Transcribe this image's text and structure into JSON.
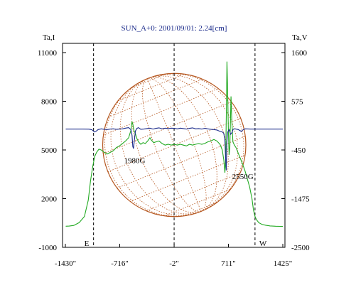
{
  "chart_data": {
    "type": "line",
    "title": "SUN_A+0: 2001/09/01: 2.24[cm]",
    "left_axis": {
      "label": "Ta,I",
      "ticks": [
        11000,
        8000,
        5000,
        2000,
        -1000
      ],
      "ylim": [
        -1000,
        11000
      ]
    },
    "right_axis": {
      "label": "Ta,V",
      "ticks": [
        1600,
        575,
        -450,
        -1475,
        -2500
      ],
      "ylim": [
        -2500,
        1600
      ]
    },
    "x_axis": {
      "ticks": [
        -1430,
        -716,
        -2,
        711,
        1425
      ],
      "tick_labels": [
        "-1430\"",
        "-716\"",
        "-2\"",
        "711\"",
        "1425\""
      ],
      "xlim": [
        -1430,
        1425
      ]
    },
    "limb_markers": [
      {
        "x": -1060,
        "label": "E"
      },
      {
        "x": -2,
        "label": ""
      },
      {
        "x": 1060,
        "label": "W"
      }
    ],
    "disk": {
      "color": "#b5561e",
      "grid": "dotted",
      "radius_arcsec": 940
    },
    "annotations": [
      {
        "text": "1980G",
        "x": -520,
        "y": 4200
      },
      {
        "text": "2550G",
        "x": 900,
        "y": 3200
      }
    ],
    "series": [
      {
        "axis": "left",
        "color": "#22aa22",
        "points": [
          [
            -1425,
            300
          ],
          [
            -1380,
            310
          ],
          [
            -1320,
            350
          ],
          [
            -1250,
            520
          ],
          [
            -1180,
            900
          ],
          [
            -1130,
            1900
          ],
          [
            -1100,
            3100
          ],
          [
            -1070,
            4000
          ],
          [
            -1045,
            4600
          ],
          [
            -1020,
            4850
          ],
          [
            -990,
            5050
          ],
          [
            -960,
            5000
          ],
          [
            -920,
            4850
          ],
          [
            -880,
            4750
          ],
          [
            -840,
            4850
          ],
          [
            -800,
            4950
          ],
          [
            -760,
            5150
          ],
          [
            -720,
            5250
          ],
          [
            -680,
            5400
          ],
          [
            -640,
            5550
          ],
          [
            -600,
            5750
          ],
          [
            -570,
            6200
          ],
          [
            -555,
            6750
          ],
          [
            -545,
            6600
          ],
          [
            -530,
            6200
          ],
          [
            -510,
            6000
          ],
          [
            -490,
            5700
          ],
          [
            -470,
            5500
          ],
          [
            -440,
            5350
          ],
          [
            -410,
            5450
          ],
          [
            -380,
            5400
          ],
          [
            -350,
            5550
          ],
          [
            -320,
            5750
          ],
          [
            -300,
            5600
          ],
          [
            -270,
            5450
          ],
          [
            -240,
            5500
          ],
          [
            -200,
            5550
          ],
          [
            -160,
            5400
          ],
          [
            -120,
            5300
          ],
          [
            -80,
            5350
          ],
          [
            -40,
            5300
          ],
          [
            0,
            5350
          ],
          [
            40,
            5300
          ],
          [
            80,
            5350
          ],
          [
            120,
            5300
          ],
          [
            160,
            5250
          ],
          [
            200,
            5350
          ],
          [
            240,
            5300
          ],
          [
            280,
            5350
          ],
          [
            320,
            5400
          ],
          [
            360,
            5350
          ],
          [
            400,
            5400
          ],
          [
            440,
            5500
          ],
          [
            480,
            5550
          ],
          [
            520,
            5650
          ],
          [
            560,
            5550
          ],
          [
            600,
            5350
          ],
          [
            630,
            5000
          ],
          [
            650,
            4400
          ],
          [
            665,
            3600
          ],
          [
            675,
            4500
          ],
          [
            685,
            7800
          ],
          [
            692,
            10450
          ],
          [
            700,
            8800
          ],
          [
            710,
            6200
          ],
          [
            720,
            4700
          ],
          [
            730,
            5200
          ],
          [
            738,
            7000
          ],
          [
            745,
            8300
          ],
          [
            755,
            6800
          ],
          [
            770,
            5500
          ],
          [
            790,
            5300
          ],
          [
            810,
            5150
          ],
          [
            840,
            4800
          ],
          [
            870,
            4450
          ],
          [
            900,
            4100
          ],
          [
            930,
            3700
          ],
          [
            960,
            3200
          ],
          [
            990,
            2700
          ],
          [
            1020,
            2000
          ],
          [
            1040,
            1300
          ],
          [
            1060,
            900
          ],
          [
            1080,
            700
          ],
          [
            1110,
            520
          ],
          [
            1150,
            420
          ],
          [
            1200,
            360
          ],
          [
            1260,
            320
          ],
          [
            1330,
            300
          ],
          [
            1400,
            290
          ],
          [
            1425,
            290
          ]
        ]
      },
      {
        "axis": "right",
        "color": "#1a2a8a",
        "points": [
          [
            -1425,
            -10
          ],
          [
            -1300,
            -10
          ],
          [
            -1200,
            -10
          ],
          [
            -1120,
            -12
          ],
          [
            -1080,
            -25
          ],
          [
            -1050,
            -70
          ],
          [
            -1030,
            -60
          ],
          [
            -1000,
            -20
          ],
          [
            -960,
            -5
          ],
          [
            -920,
            -15
          ],
          [
            -880,
            -20
          ],
          [
            -840,
            -10
          ],
          [
            -800,
            -5
          ],
          [
            -760,
            -15
          ],
          [
            -720,
            -10
          ],
          [
            -680,
            -5
          ],
          [
            -640,
            10
          ],
          [
            -600,
            20
          ],
          [
            -570,
            -20
          ],
          [
            -555,
            -140
          ],
          [
            -545,
            -380
          ],
          [
            -535,
            -420
          ],
          [
            -525,
            -260
          ],
          [
            -510,
            -50
          ],
          [
            -490,
            5
          ],
          [
            -470,
            20
          ],
          [
            -440,
            -15
          ],
          [
            -400,
            -10
          ],
          [
            -360,
            0
          ],
          [
            -320,
            10
          ],
          [
            -280,
            -10
          ],
          [
            -240,
            5
          ],
          [
            -200,
            15
          ],
          [
            -160,
            -5
          ],
          [
            -120,
            10
          ],
          [
            -80,
            0
          ],
          [
            -40,
            10
          ],
          [
            0,
            5
          ],
          [
            40,
            -5
          ],
          [
            80,
            10
          ],
          [
            120,
            0
          ],
          [
            160,
            -10
          ],
          [
            200,
            5
          ],
          [
            240,
            15
          ],
          [
            280,
            -5
          ],
          [
            320,
            0
          ],
          [
            360,
            -10
          ],
          [
            400,
            5
          ],
          [
            440,
            -5
          ],
          [
            480,
            -15
          ],
          [
            520,
            -20
          ],
          [
            560,
            -30
          ],
          [
            600,
            -60
          ],
          [
            630,
            -70
          ],
          [
            650,
            -100
          ],
          [
            665,
            -250
          ],
          [
            675,
            -650
          ],
          [
            682,
            -880
          ],
          [
            690,
            -300
          ],
          [
            700,
            -80
          ],
          [
            720,
            -20
          ],
          [
            740,
            -120
          ],
          [
            755,
            -90
          ],
          [
            775,
            -10
          ],
          [
            800,
            -5
          ],
          [
            840,
            -20
          ],
          [
            880,
            -60
          ],
          [
            900,
            -30
          ],
          [
            930,
            -5
          ],
          [
            1000,
            -10
          ],
          [
            1100,
            -10
          ],
          [
            1200,
            -10
          ],
          [
            1300,
            -10
          ],
          [
            1425,
            -10
          ]
        ]
      }
    ]
  }
}
